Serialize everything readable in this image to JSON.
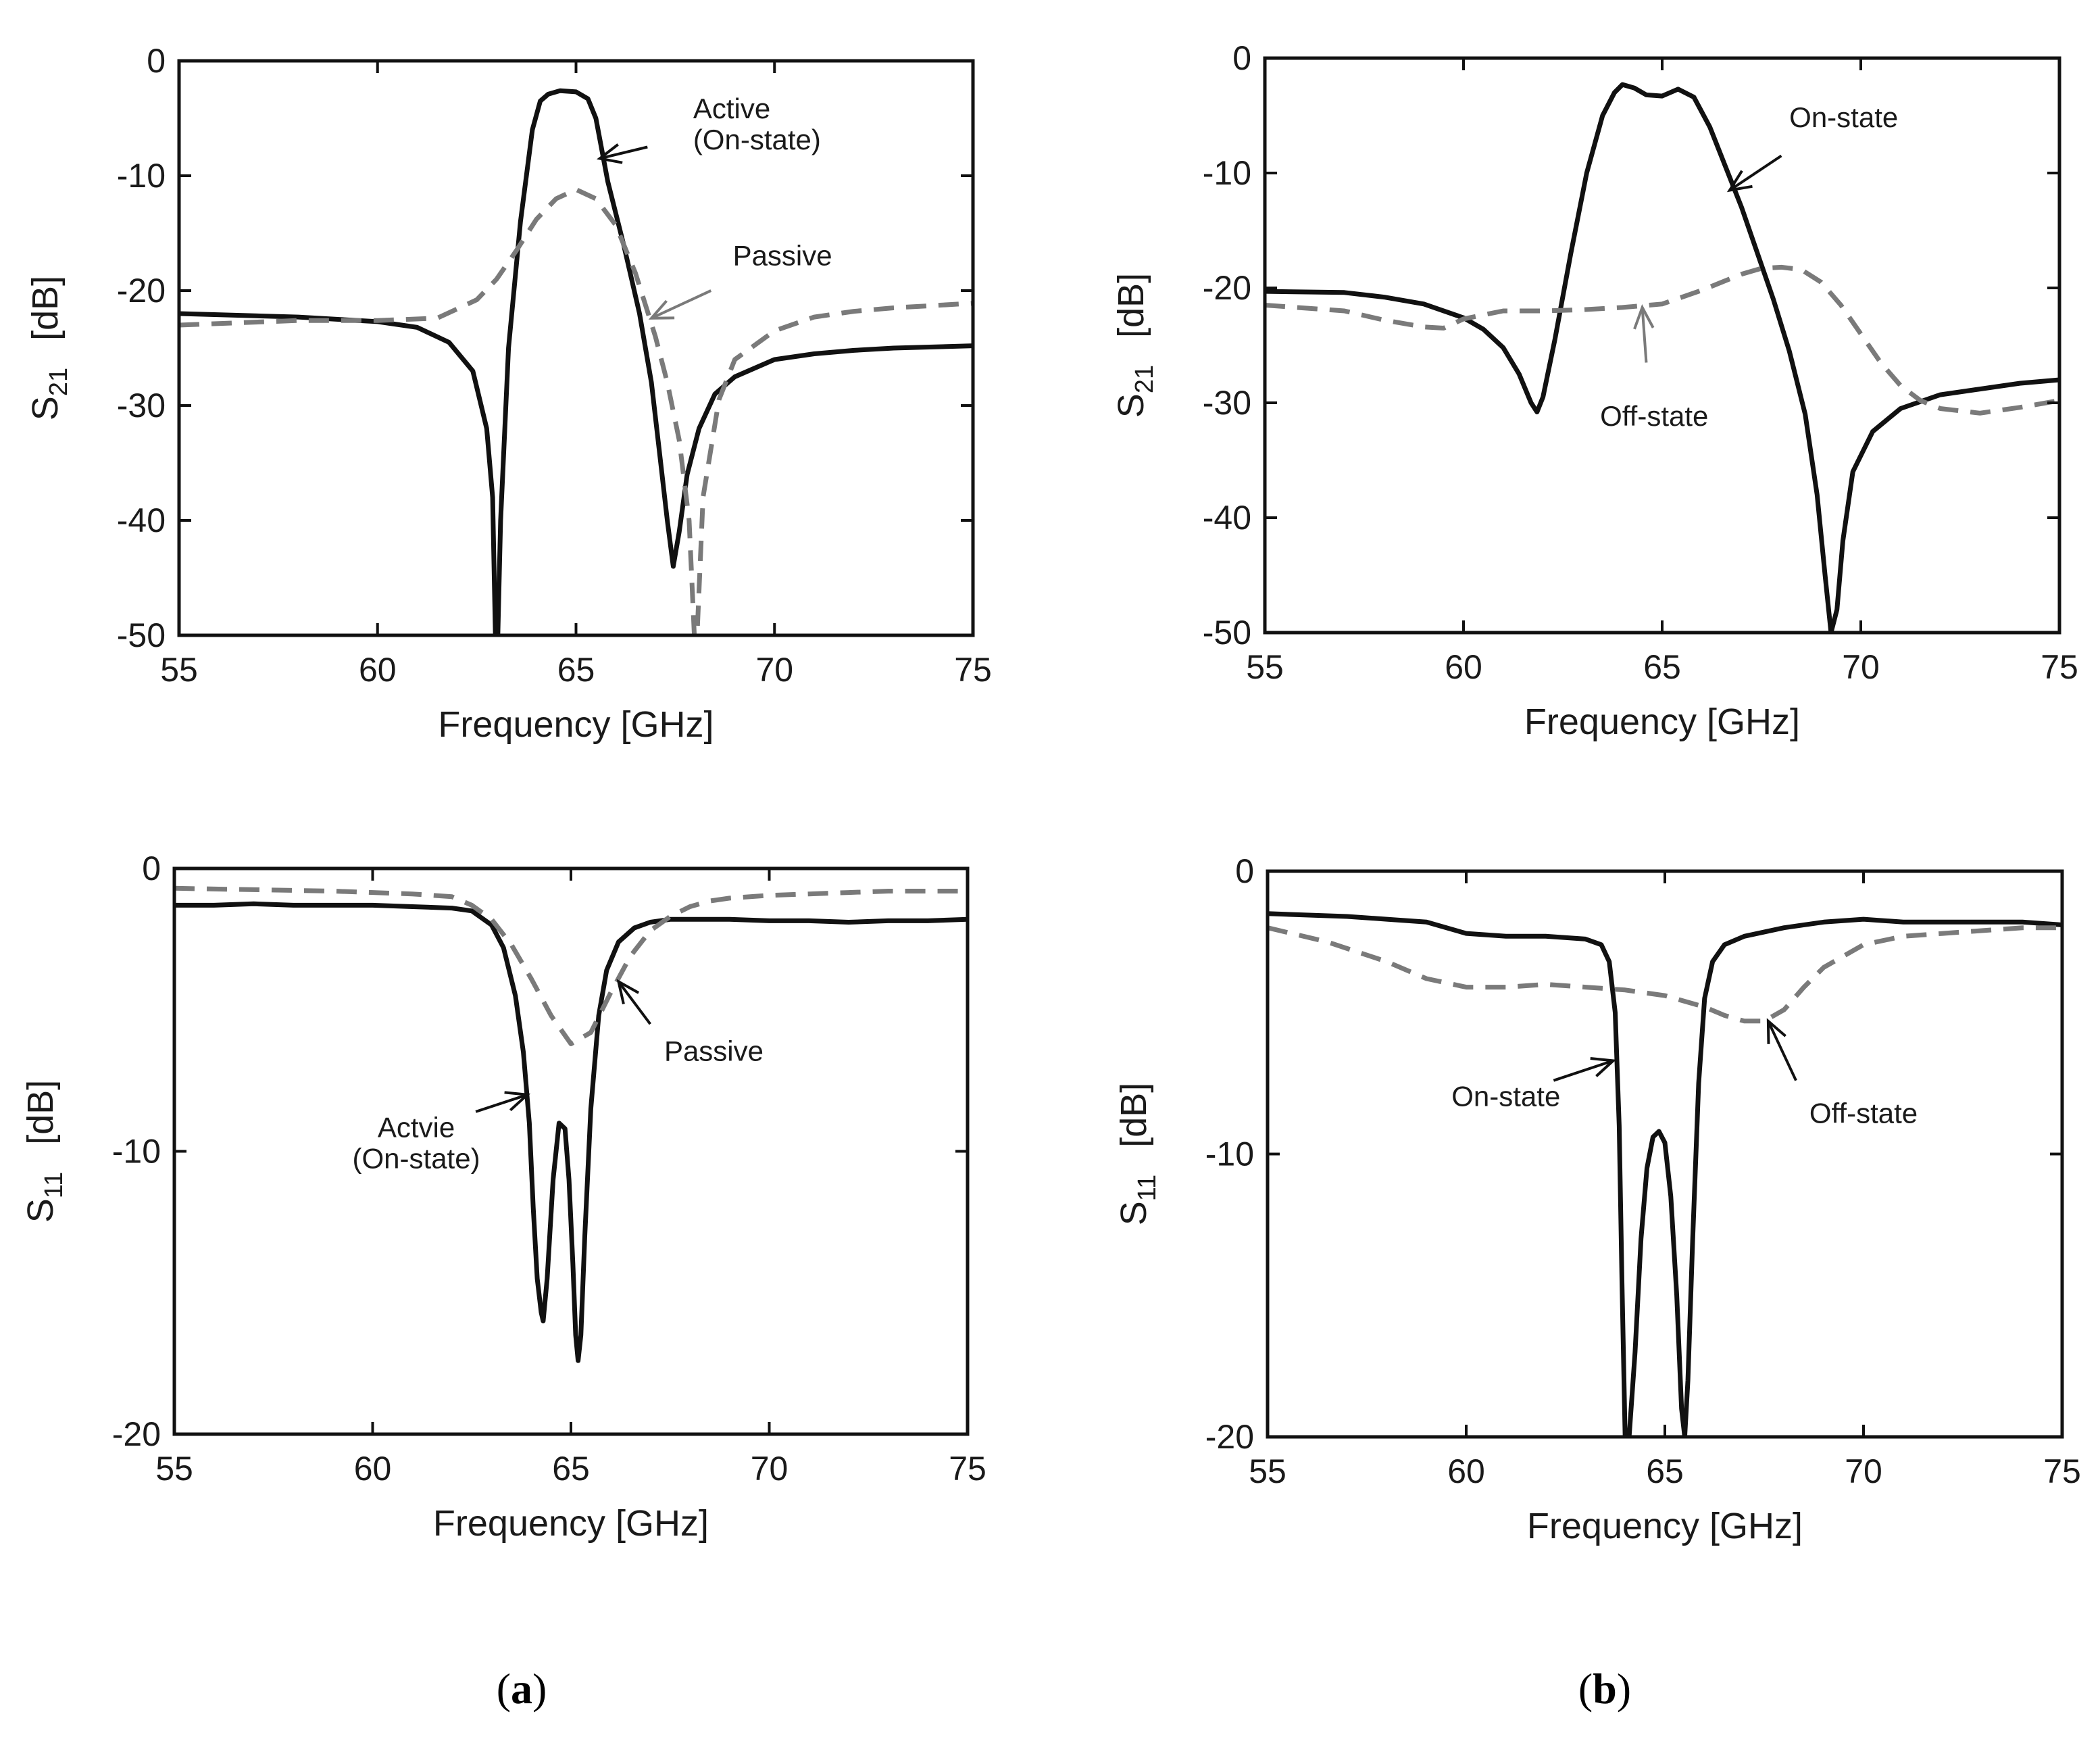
{
  "panel_labels": {
    "a": "a",
    "b": "b"
  },
  "colors": {
    "solid": "#111111",
    "dashed": "#7a7a7a",
    "axis": "#111111",
    "text": "#1a1a1a"
  },
  "chart_data": [
    {
      "id": "s21_a",
      "type": "line",
      "xlabel": "Frequency   [GHz]",
      "ylabel_main": "S",
      "ylabel_sub": "21",
      "ylabel_unit": "[dB]",
      "xlim": [
        55,
        75
      ],
      "ylim": [
        -50,
        0
      ],
      "xticks": [
        55,
        60,
        65,
        70,
        75
      ],
      "yticks": [
        0,
        -10,
        -20,
        -30,
        -40,
        -50
      ],
      "series": [
        {
          "name": "Active (On-state)",
          "style": "solid",
          "x": [
            55,
            58,
            60,
            61,
            61.8,
            62.4,
            62.75,
            62.9,
            62.97,
            63.03,
            63.1,
            63.3,
            63.6,
            63.9,
            64.1,
            64.3,
            64.6,
            65,
            65.3,
            65.5,
            65.8,
            66.2,
            66.6,
            66.9,
            67.1,
            67.3,
            67.45,
            67.6,
            67.8,
            68.1,
            68.5,
            69,
            70,
            71,
            72,
            73,
            75
          ],
          "y": [
            -22,
            -22.3,
            -22.7,
            -23.2,
            -24.5,
            -27,
            -32,
            -38,
            -50,
            -50,
            -40,
            -25,
            -14,
            -6,
            -3.5,
            -2.9,
            -2.6,
            -2.7,
            -3.3,
            -5,
            -10.5,
            -16,
            -22,
            -28,
            -34,
            -40,
            -44,
            -41,
            -36,
            -32,
            -29,
            -27.5,
            -26,
            -25.5,
            -25.2,
            -25,
            -24.8
          ]
        },
        {
          "name": "Passive",
          "style": "dashed",
          "x": [
            55,
            58,
            60,
            61.5,
            62.5,
            63,
            63.5,
            64,
            64.5,
            65,
            65.5,
            66,
            66.5,
            67,
            67.3,
            67.6,
            67.85,
            67.98,
            68.05,
            68.2,
            68.6,
            69,
            70,
            71,
            72,
            73,
            75
          ],
          "y": [
            -23,
            -22.6,
            -22.6,
            -22.4,
            -20.8,
            -19,
            -16.5,
            -13.8,
            -12,
            -11.2,
            -12,
            -14.3,
            -18.5,
            -24,
            -28,
            -33,
            -40,
            -50,
            -50,
            -38,
            -29.5,
            -26,
            -23.5,
            -22.3,
            -21.8,
            -21.5,
            -21.1
          ]
        }
      ],
      "annotations": [
        {
          "lines": [
            "Active",
            "(On-state)"
          ],
          "color": "solid",
          "tip": [
            65.6,
            -8.5
          ],
          "base": [
            66.8,
            -7.5
          ],
          "label_at": [
            67.95,
            -5
          ],
          "anchor": "start"
        },
        {
          "lines": [
            "Passive"
          ],
          "color": "dashed",
          "tip": [
            66.9,
            -22.4
          ],
          "base": [
            68.4,
            -20
          ],
          "label_at": [
            68.95,
            -17.8
          ],
          "anchor": "start"
        }
      ]
    },
    {
      "id": "s21_b",
      "type": "line",
      "xlabel": "Frequency   [GHz]",
      "ylabel_main": "S",
      "ylabel_sub": "21",
      "ylabel_unit": "[dB]",
      "xlim": [
        55,
        75
      ],
      "ylim": [
        -50,
        0
      ],
      "xticks": [
        55,
        60,
        65,
        70,
        75
      ],
      "yticks": [
        0,
        -10,
        -20,
        -30,
        -40,
        -50
      ],
      "series": [
        {
          "name": "On-state",
          "style": "solid",
          "x": [
            55,
            57,
            58,
            59,
            60,
            60.5,
            61,
            61.4,
            61.7,
            61.85,
            62,
            62.3,
            62.7,
            63.1,
            63.5,
            63.8,
            64,
            64.3,
            64.6,
            65,
            65.4,
            65.8,
            66.2,
            66.6,
            67,
            67.4,
            67.8,
            68.2,
            68.6,
            68.9,
            69.1,
            69.25,
            69.4,
            69.55,
            69.8,
            70.3,
            71,
            72,
            73,
            74,
            75
          ],
          "y": [
            -20.3,
            -20.4,
            -20.8,
            -21.4,
            -22.6,
            -23.6,
            -25.2,
            -27.5,
            -30,
            -30.8,
            -29.5,
            -24.5,
            -17,
            -10,
            -5,
            -3,
            -2.3,
            -2.6,
            -3.2,
            -3.3,
            -2.7,
            -3.4,
            -6,
            -9.5,
            -13,
            -17,
            -21,
            -25.5,
            -31,
            -38,
            -45,
            -50,
            -48,
            -42,
            -36,
            -32.5,
            -30.5,
            -29.3,
            -28.8,
            -28.3,
            -28
          ]
        },
        {
          "name": "Off-state",
          "style": "dashed",
          "x": [
            55,
            57,
            58,
            59,
            59.5,
            60,
            61,
            62,
            63,
            64,
            65,
            66,
            67,
            67.5,
            68,
            68.5,
            69,
            69.5,
            70,
            70.5,
            71,
            71.5,
            72,
            73,
            74,
            75
          ],
          "y": [
            -21.5,
            -22,
            -22.8,
            -23.4,
            -23.5,
            -22.7,
            -22,
            -22,
            -21.9,
            -21.7,
            -21.4,
            -20.2,
            -18.8,
            -18.3,
            -18.2,
            -18.4,
            -19.5,
            -21.5,
            -24,
            -26.5,
            -28.5,
            -29.8,
            -30.5,
            -30.9,
            -30.4,
            -29.8
          ]
        }
      ],
      "annotations": [
        {
          "lines": [
            "On-state"
          ],
          "color": "solid",
          "tip": [
            66.7,
            -11.5
          ],
          "base": [
            68,
            -8.5
          ],
          "label_at": [
            68.2,
            -6
          ],
          "anchor": "start"
        },
        {
          "lines": [
            "Off-state"
          ],
          "color": "dashed",
          "tip": [
            64.5,
            -21.7
          ],
          "base": [
            64.6,
            -26.5
          ],
          "label_at": [
            64.8,
            -32
          ],
          "anchor": "middle"
        }
      ]
    },
    {
      "id": "s11_a",
      "type": "line",
      "xlabel": "Frequency   [GHz]",
      "ylabel_main": "S",
      "ylabel_sub": "11",
      "ylabel_unit": "[dB]",
      "xlim": [
        55,
        75
      ],
      "ylim": [
        -20,
        0
      ],
      "xticks": [
        55,
        60,
        65,
        70,
        75
      ],
      "yticks": [
        0,
        -10,
        -20
      ],
      "series": [
        {
          "name": "Active (On-state)",
          "style": "solid",
          "x": [
            55,
            56,
            57,
            58,
            59,
            60,
            61,
            62,
            62.5,
            63,
            63.3,
            63.6,
            63.8,
            63.95,
            64.05,
            64.15,
            64.25,
            64.3,
            64.4,
            64.55,
            64.7,
            64.85,
            64.95,
            65.05,
            65.12,
            65.18,
            65.25,
            65.35,
            65.5,
            65.7,
            65.9,
            66.2,
            66.6,
            67,
            67.5,
            68,
            69,
            70,
            71,
            72,
            73,
            74,
            75
          ],
          "y": [
            -1.3,
            -1.3,
            -1.25,
            -1.3,
            -1.3,
            -1.3,
            -1.35,
            -1.4,
            -1.5,
            -2,
            -2.8,
            -4.5,
            -6.5,
            -9,
            -12,
            -14.5,
            -15.7,
            -16,
            -14.5,
            -11,
            -9,
            -9.2,
            -11,
            -14,
            -16.5,
            -17.4,
            -16.5,
            -13,
            -8.5,
            -5.2,
            -3.6,
            -2.6,
            -2.1,
            -1.9,
            -1.8,
            -1.8,
            -1.8,
            -1.85,
            -1.85,
            -1.9,
            -1.85,
            -1.85,
            -1.8
          ]
        },
        {
          "name": "Passive",
          "style": "dashed",
          "x": [
            55,
            57,
            59,
            61,
            62,
            62.5,
            63,
            63.5,
            64,
            64.5,
            65,
            65.5,
            66,
            66.5,
            67,
            67.5,
            68,
            68.5,
            69,
            70,
            71,
            72,
            73,
            74,
            75
          ],
          "y": [
            -0.7,
            -0.75,
            -0.8,
            -0.9,
            -1,
            -1.3,
            -1.8,
            -2.7,
            -3.9,
            -5.2,
            -6.2,
            -5.8,
            -4.4,
            -3.1,
            -2.2,
            -1.7,
            -1.35,
            -1.15,
            -1.05,
            -0.95,
            -0.9,
            -0.85,
            -0.8,
            -0.8,
            -0.8
          ]
        }
      ],
      "annotations": [
        {
          "lines": [
            "Passive"
          ],
          "color": "solid",
          "tip": [
            66.2,
            -4
          ],
          "base": [
            67,
            -5.5
          ],
          "label_at": [
            67.35,
            -6.8
          ],
          "anchor": "start"
        },
        {
          "lines": [
            "Actvie",
            "(On-state)"
          ],
          "color": "solid",
          "tip": [
            63.9,
            -8
          ],
          "base": [
            62.6,
            -8.6
          ],
          "label_at": [
            61.1,
            -9.5
          ],
          "anchor": "middle"
        }
      ]
    },
    {
      "id": "s11_b",
      "type": "line",
      "xlabel": "Frequency   [GHz]",
      "ylabel_main": "S",
      "ylabel_sub": "11",
      "ylabel_unit": "[dB]",
      "xlim": [
        55,
        75
      ],
      "ylim": [
        -20,
        0
      ],
      "xticks": [
        55,
        60,
        65,
        70,
        75
      ],
      "yticks": [
        0,
        -10,
        -20
      ],
      "series": [
        {
          "name": "On-state",
          "style": "solid",
          "x": [
            55,
            57,
            58,
            59,
            60,
            61,
            62,
            63,
            63.4,
            63.6,
            63.75,
            63.85,
            63.92,
            64,
            64.1,
            64.25,
            64.4,
            64.55,
            64.7,
            64.85,
            65,
            65.15,
            65.3,
            65.42,
            65.5,
            65.58,
            65.7,
            65.85,
            66,
            66.2,
            66.5,
            67,
            68,
            69,
            70,
            71,
            72,
            73,
            74,
            75
          ],
          "y": [
            -1.5,
            -1.6,
            -1.7,
            -1.8,
            -2.2,
            -2.3,
            -2.3,
            -2.4,
            -2.6,
            -3.2,
            -5,
            -9,
            -14.5,
            -20,
            -20,
            -17,
            -13,
            -10.5,
            -9.4,
            -9.2,
            -9.6,
            -11.5,
            -15,
            -19,
            -20,
            -18,
            -13,
            -7.5,
            -4.5,
            -3.2,
            -2.6,
            -2.3,
            -2,
            -1.8,
            -1.7,
            -1.8,
            -1.8,
            -1.8,
            -1.8,
            -1.9
          ]
        },
        {
          "name": "Off-state",
          "style": "dashed",
          "x": [
            55,
            56.5,
            58,
            59,
            60,
            61,
            62,
            63,
            64,
            65,
            66,
            66.5,
            67,
            67.5,
            68,
            68.5,
            69,
            70,
            71,
            72,
            73,
            74,
            75
          ],
          "y": [
            -2,
            -2.5,
            -3.2,
            -3.8,
            -4.1,
            -4.1,
            -4,
            -4.1,
            -4.2,
            -4.4,
            -4.8,
            -5.1,
            -5.3,
            -5.3,
            -4.9,
            -4.1,
            -3.4,
            -2.6,
            -2.3,
            -2.2,
            -2.1,
            -2,
            -2
          ]
        }
      ],
      "annotations": [
        {
          "lines": [
            "On-state"
          ],
          "color": "solid",
          "tip": [
            63.7,
            -6.7
          ],
          "base": [
            62.2,
            -7.4
          ],
          "label_at": [
            61,
            -8.3
          ],
          "anchor": "middle"
        },
        {
          "lines": [
            "Off-state"
          ],
          "color": "solid",
          "tip": [
            67.6,
            -5.3
          ],
          "base": [
            68.3,
            -7.4
          ],
          "label_at": [
            70,
            -8.9
          ],
          "anchor": "middle"
        }
      ]
    }
  ]
}
